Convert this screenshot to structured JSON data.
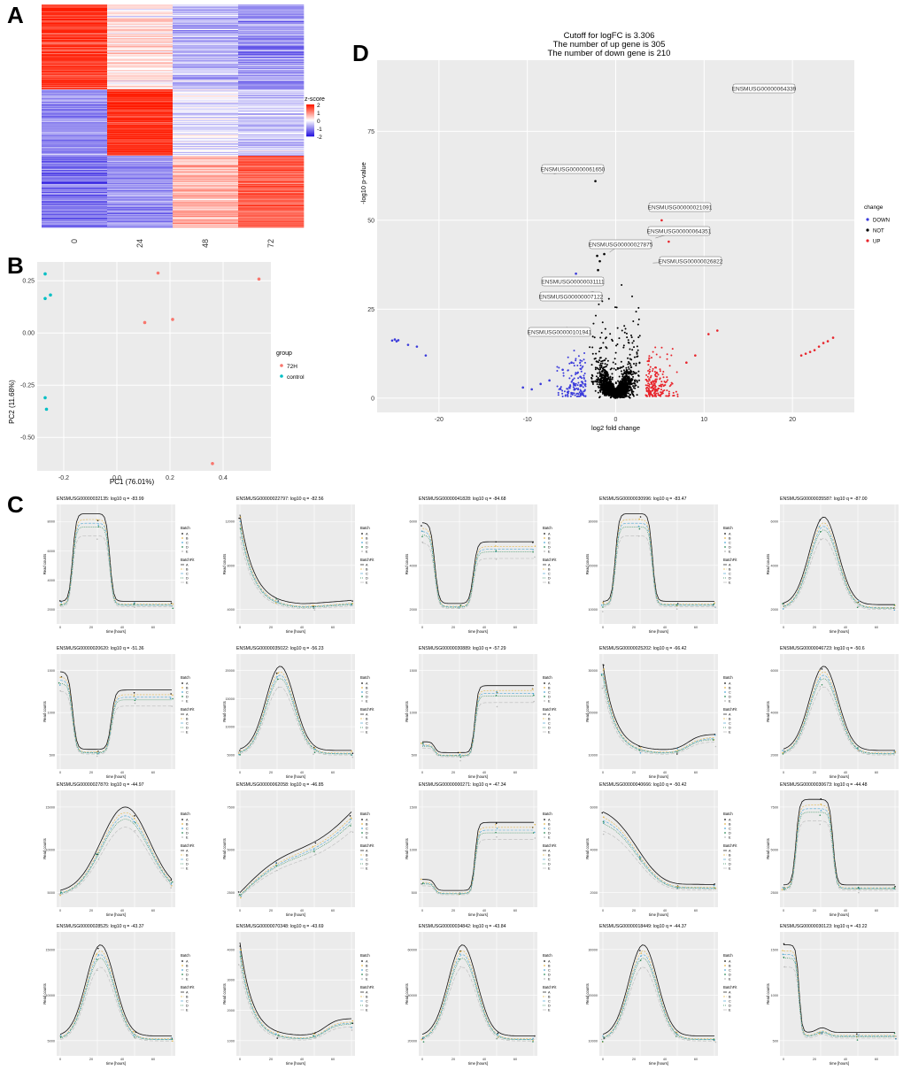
{
  "panel_labels": {
    "a": "A",
    "b": "B",
    "c": "C",
    "d": "D"
  },
  "colors": {
    "panel_bg": "#ebebeb",
    "grid": "#ffffff",
    "red": "#f8766d",
    "teal": "#00bfc4",
    "down": "#3a3adb",
    "not": "#000000",
    "up": "#e8242b",
    "heat_low": "#2a18e0",
    "heat_mid": "#ffffff",
    "heat_high": "#ff1a00"
  },
  "chart_data": [
    {
      "id": "A",
      "type": "heatmap",
      "columns": [
        "0",
        "24",
        "48",
        "72"
      ],
      "clusters": [
        {
          "rows": 1,
          "zscores": [
            1.7,
            0.2,
            -0.6,
            -0.9
          ]
        },
        {
          "rows": 1,
          "zscores": [
            -1.0,
            1.8,
            -0.2,
            -0.5
          ]
        },
        {
          "rows": 1,
          "zscores": [
            -1.2,
            -0.9,
            0.6,
            1.4
          ]
        }
      ],
      "legend": {
        "title": "z-score",
        "ticks": [
          "2",
          "1",
          "0",
          "-1",
          "-2"
        ],
        "range": [
          -2,
          2
        ]
      }
    },
    {
      "id": "B",
      "type": "scatter",
      "xlabel": "PC1 (76.01%)",
      "ylabel": "PC2 (11.68%)",
      "xlim": [
        -0.3,
        0.58
      ],
      "ylim": [
        -0.66,
        0.34
      ],
      "xticks": [
        -0.2,
        0.0,
        0.2,
        0.4
      ],
      "xtick_labels": [
        "-0.2",
        "0.0",
        "0.2",
        "0.4"
      ],
      "yticks": [
        0.25,
        0.0,
        -0.25,
        -0.5
      ],
      "ytick_labels": [
        "0.25",
        "0.00",
        "-0.25",
        "-0.50"
      ],
      "legend": {
        "title": "group",
        "entries": [
          "72H",
          "control"
        ]
      },
      "series": [
        {
          "name": "72H",
          "points": [
            [
              0.155,
              0.287
            ],
            [
              0.535,
              0.258
            ],
            [
              0.105,
              0.05
            ],
            [
              0.21,
              0.065
            ],
            [
              0.36,
              -0.625
            ]
          ]
        },
        {
          "name": "control",
          "points": [
            [
              -0.27,
              0.283
            ],
            [
              -0.25,
              0.182
            ],
            [
              -0.27,
              0.165
            ],
            [
              -0.27,
              -0.31
            ],
            [
              -0.265,
              -0.365
            ]
          ]
        }
      ]
    },
    {
      "id": "D",
      "type": "scatter",
      "title_lines": [
        "Cutoff for logFC is 3.306",
        "The number of up gene is 305",
        "The number of down gene is 210"
      ],
      "xlabel": "log2 fold change",
      "ylabel": "-log10 p-value",
      "xlim": [
        -27,
        27
      ],
      "ylim": [
        -4,
        95
      ],
      "xticks": [
        -20,
        -10,
        0,
        10,
        20
      ],
      "xtick_labels": [
        "-20",
        "-10",
        "0",
        "10",
        "20"
      ],
      "yticks": [
        0,
        25,
        50,
        75
      ],
      "ytick_labels": [
        "0",
        "25",
        "50",
        "75"
      ],
      "legend": {
        "title": "change",
        "entries": [
          "DOWN",
          "NOT",
          "UP"
        ]
      },
      "highlight_points": [
        {
          "name": "DOWN",
          "points": [
            [
              -25.3,
              16.2
            ],
            [
              -25.0,
              16.5
            ],
            [
              -24.8,
              16.0
            ],
            [
              -24.6,
              16.3
            ],
            [
              -23.5,
              15.0
            ],
            [
              -22.5,
              14.5
            ],
            [
              -21.5,
              12.0
            ],
            [
              -10.5,
              3.0
            ],
            [
              -9.5,
              2.5
            ],
            [
              -8.5,
              4.0
            ],
            [
              -7.5,
              5.0
            ],
            [
              -6.0,
              8.0
            ],
            [
              -5.0,
              10.0
            ],
            [
              -4.5,
              35.0
            ],
            [
              -4.0,
              6.0
            ]
          ]
        },
        {
          "name": "UP",
          "points": [
            [
              18.3,
              88.0
            ],
            [
              21.0,
              12.0
            ],
            [
              21.5,
              12.5
            ],
            [
              22.0,
              13.0
            ],
            [
              22.5,
              13.5
            ],
            [
              23.0,
              14.5
            ],
            [
              23.5,
              15.5
            ],
            [
              24.0,
              16.0
            ],
            [
              24.6,
              17.0
            ],
            [
              11.5,
              19.0
            ],
            [
              10.5,
              18.0
            ],
            [
              9.0,
              12.0
            ],
            [
              8.0,
              10.0
            ],
            [
              6.0,
              44.0
            ],
            [
              5.5,
              39.0
            ],
            [
              5.2,
              50.0
            ]
          ]
        },
        {
          "name": "NOT",
          "points": [
            [
              -2.3,
              61.0
            ],
            [
              -2.1,
              40.0
            ],
            [
              -1.8,
              38.5
            ],
            [
              -2.0,
              36.0
            ],
            [
              -2.5,
              33.0
            ],
            [
              -1.3,
              40.5
            ],
            [
              -2.2,
              28.0
            ]
          ]
        }
      ],
      "gene_labels": [
        {
          "text": "ENSMUSG00000064339",
          "x": 18.3,
          "y": 88.0
        },
        {
          "text": "ENSMUSG00000061650",
          "x": -7.0,
          "y": 63.0
        },
        {
          "text": "ENSMUSG00000021091",
          "x": 5.7,
          "y": 53.0
        },
        {
          "text": "ENSMUSG00000064351",
          "x": 4.5,
          "y": 45.0
        },
        {
          "text": "ENSMUSG00000027875",
          "x": -0.7,
          "y": 41.0
        },
        {
          "text": "ENSMUSG00000026822",
          "x": 4.2,
          "y": 38.0
        },
        {
          "text": "ENSMUSG00000031111",
          "x": -3.0,
          "y": 34.0
        },
        {
          "text": "ENSMUSG00000007122",
          "x": -2.5,
          "y": 30.0
        },
        {
          "text": "ENSMUSG00000101941",
          "x": -5.5,
          "y": 20.0
        }
      ]
    },
    {
      "id": "C",
      "type": "line",
      "xlabel": "time [hours]",
      "ylabel": "Read counts",
      "legend_titles": [
        "Batch",
        "BatchFit"
      ],
      "legend_entries": [
        "A",
        "B",
        "C",
        "D",
        "E"
      ],
      "panels": [
        {
          "title": "ENSMUSG00000032135: log10 q = -83.99",
          "shape": "pulse_up",
          "yticks": [
            "8000",
            "6000",
            "4000",
            "2000"
          ]
        },
        {
          "title": "ENSMUSG00000022797: log10 q = -82.56",
          "shape": "decay",
          "yticks": [
            "12000",
            "8000",
            "4000"
          ]
        },
        {
          "title": "ENSMUSG00000041828: log10 q = -84.68",
          "shape": "dip_recover",
          "yticks": [
            "6000",
            "4000",
            "2000"
          ]
        },
        {
          "title": "ENSMUSG00000030996: log10 q = -83.47",
          "shape": "pulse_up",
          "yticks": [
            "30000",
            "20000",
            "10000"
          ]
        },
        {
          "title": "ENSMUSG00000035587: log10 q = -87.00",
          "shape": "bell",
          "yticks": [
            "6000",
            "4000",
            "2000"
          ]
        },
        {
          "title": "ENSMUSG00000020620: log10 q = -51.36",
          "shape": "dip_recover",
          "yticks": [
            "1500",
            "1000",
            "500"
          ]
        },
        {
          "title": "ENSMUSG00000035022: log10 q = -56.23",
          "shape": "bell",
          "yticks": [
            "20000",
            "15000",
            "10000",
            "5000"
          ]
        },
        {
          "title": "ENSMUSG00000030889: log10 q = -57.29",
          "shape": "step_up",
          "yticks": [
            "1500",
            "1000",
            "500"
          ]
        },
        {
          "title": "ENSMUSG00000025202: log10 q = -66.42",
          "shape": "decay_tail",
          "yticks": [
            "30000",
            "20000",
            "10000"
          ]
        },
        {
          "title": "ENSMUSG00000046723: log10 q = -50.6",
          "shape": "bell",
          "yticks": [
            "6000",
            "4000",
            "2000"
          ]
        },
        {
          "title": "ENSMUSG00000027870: log10 q = -44.97",
          "shape": "late_bell",
          "yticks": [
            "15000",
            "10000",
            "5000"
          ]
        },
        {
          "title": "ENSMUSG00000062058: log10 q = -46.85",
          "shape": "rise",
          "yticks": [
            "7500",
            "5000",
            "2500"
          ]
        },
        {
          "title": "ENSMUSG00000000271: log10 q = -47.34",
          "shape": "step_up",
          "yticks": [
            "1500",
            "1000",
            "500"
          ]
        },
        {
          "title": "ENSMUSG00000040666: log10 q = -50.42",
          "shape": "slow_decay",
          "yticks": [
            "6000",
            "4000",
            "2000"
          ]
        },
        {
          "title": "ENSMUSG00000030673: log10 q = -44.48",
          "shape": "pulse_up",
          "yticks": [
            "7500",
            "5000",
            "2500"
          ]
        },
        {
          "title": "ENSMUSG00000028525: log10 q = -43.37",
          "shape": "bell",
          "yticks": [
            "15000",
            "10000",
            "5000"
          ]
        },
        {
          "title": "ENSMUSG00000070348: log10 q = -43.69",
          "shape": "decay_tail",
          "yticks": [
            "4000",
            "3000",
            "2000",
            "1000"
          ]
        },
        {
          "title": "ENSMUSG00000034842: log10 q = -43.84",
          "shape": "bell",
          "yticks": [
            "60000",
            "40000",
            "20000"
          ]
        },
        {
          "title": "ENSMUSG00000018449: log10 q = -44.37",
          "shape": "bell",
          "yticks": [
            "30000",
            "20000",
            "10000"
          ]
        },
        {
          "title": "ENSMUSG00000030123: log10 q = -43.22",
          "shape": "early_drop",
          "yticks": [
            "1500",
            "1000",
            "500"
          ]
        }
      ]
    }
  ]
}
